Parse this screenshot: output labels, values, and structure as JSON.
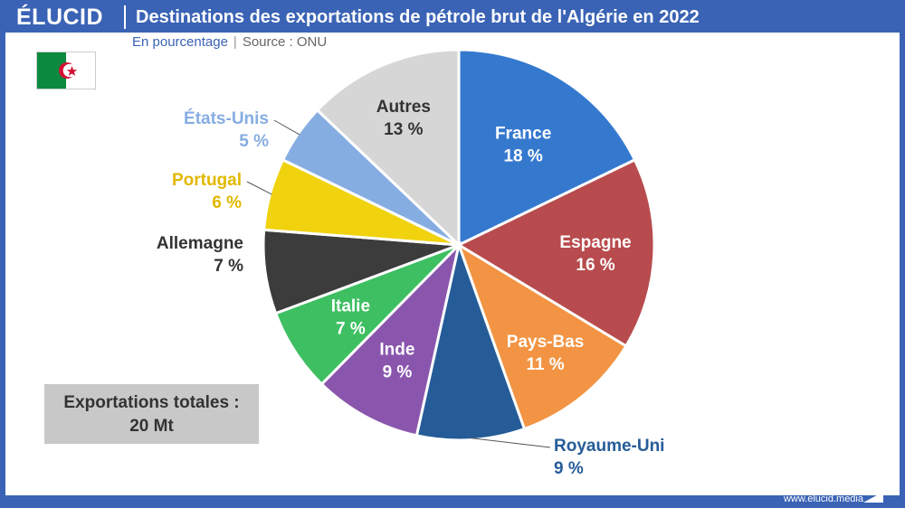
{
  "header": {
    "brand": "ÉLUCID",
    "title": "Destinations des exportations de pétrole brut de l'Algérie en 2022"
  },
  "subtitle": {
    "unit": "En pourcentage",
    "separator": "|",
    "source": "Source : ONU"
  },
  "flag": {
    "icon": "algeria-flag-icon",
    "colors": [
      "#0b8a3f",
      "#ffffff",
      "#d21034"
    ]
  },
  "total": {
    "label": "Exportations totales :",
    "value": "20 Mt"
  },
  "footer": {
    "url": "www.elucid.media"
  },
  "chart_data": {
    "type": "pie",
    "title": "Destinations des exportations de pétrole brut de l'Algérie en 2022",
    "unit": "%",
    "slices": [
      {
        "label": "France",
        "value": 18,
        "display": "18 %",
        "color": "#3579cf"
      },
      {
        "label": "Espagne",
        "value": 16,
        "display": "16 %",
        "color": "#b84b4d"
      },
      {
        "label": "Pays-Bas",
        "value": 11,
        "display": "11 %",
        "color": "#f29443"
      },
      {
        "label": "Royaume-Uni",
        "value": 9,
        "display": "9 %",
        "color": "#255c98"
      },
      {
        "label": "Inde",
        "value": 9,
        "display": "9 %",
        "color": "#8a56ad"
      },
      {
        "label": "Italie",
        "value": 7,
        "display": "7 %",
        "color": "#3ebf62"
      },
      {
        "label": "Allemagne",
        "value": 7,
        "display": "7 %",
        "color": "#3c3c3c"
      },
      {
        "label": "Portugal",
        "value": 6,
        "display": "6 %",
        "color": "#f0d20f"
      },
      {
        "label": "États-Unis",
        "value": 5,
        "display": "5 %",
        "color": "#86ade2"
      },
      {
        "label": "Autres",
        "value": 13,
        "display": "13 %",
        "color": "#d6d6d6"
      }
    ]
  }
}
